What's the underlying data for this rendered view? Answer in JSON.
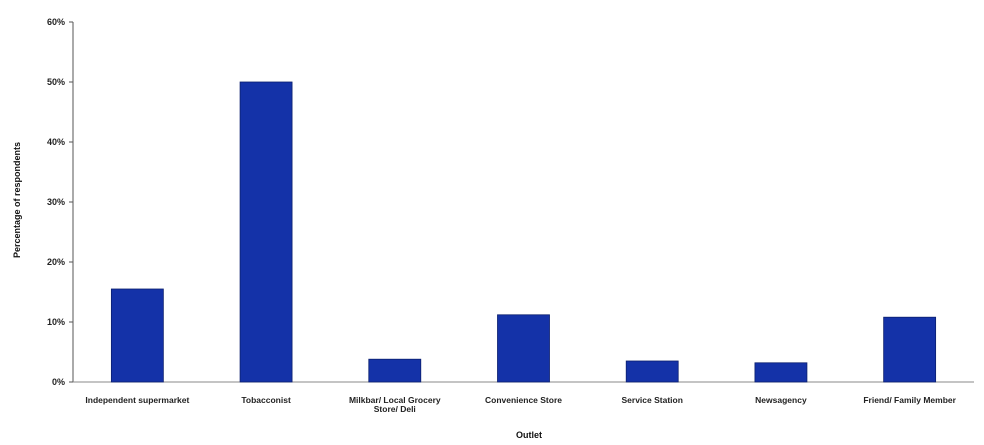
{
  "chart_data": {
    "type": "bar",
    "title": "",
    "xlabel": "Outlet",
    "ylabel": "Percentage of respondents",
    "ylim": [
      0,
      60
    ],
    "yticks": [
      0,
      10,
      20,
      30,
      40,
      50,
      60
    ],
    "ytick_suffix": "%",
    "grid": false,
    "legend": "none",
    "bar_color": "#1432a8",
    "categories": [
      [
        "Independent supermarket"
      ],
      [
        "Tobacconist"
      ],
      [
        "Milkbar/ Local Grocery",
        "Store/ Deli"
      ],
      [
        "Convenience Store"
      ],
      [
        "Service Station"
      ],
      [
        "Newsagency"
      ],
      [
        "Friend/ Family Member"
      ]
    ],
    "values": [
      15.5,
      50,
      3.8,
      11.2,
      3.5,
      3.2,
      10.8
    ]
  }
}
